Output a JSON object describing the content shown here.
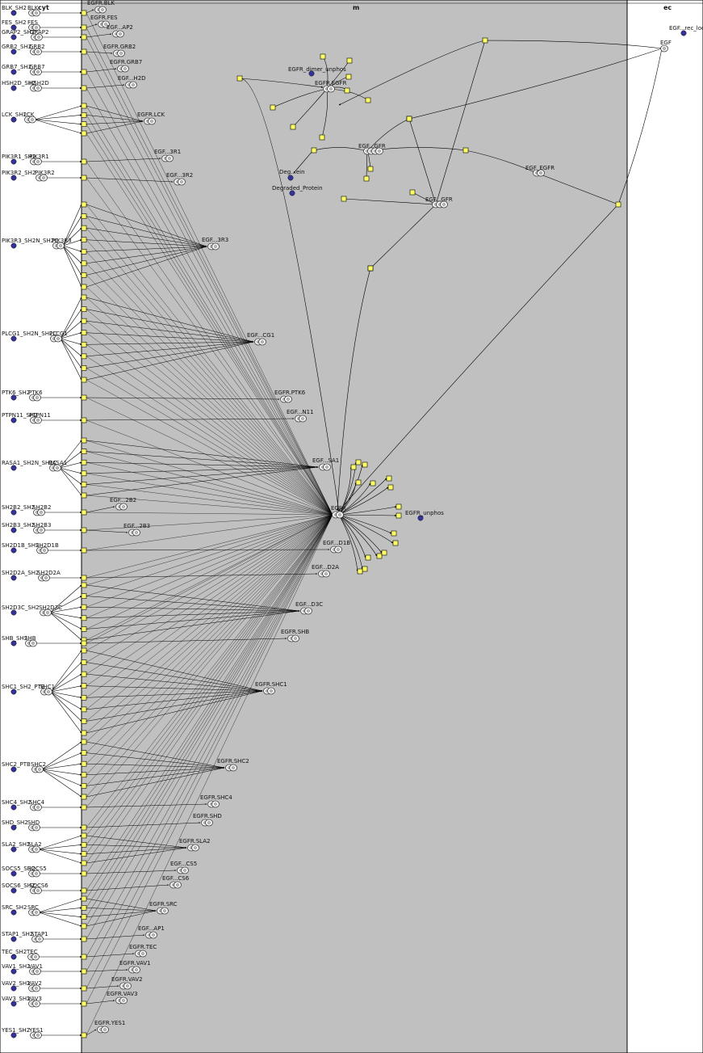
{
  "compartments": [
    {
      "name": "cyt"
    },
    {
      "name": "m"
    },
    {
      "name": "ec"
    }
  ],
  "colors": {
    "cyt_bg": "#ffffff",
    "m_bg": "#c0c0c0",
    "ec_bg": "#ffffff",
    "node": "#ffff66",
    "species_dot": "#333399",
    "complex_outline": "#444444",
    "edge": "#000000"
  },
  "domains": [
    {
      "label": "BLK_SH2",
      "complex": "BLK"
    },
    {
      "label": "FES_SH2",
      "complex": "FES"
    },
    {
      "label": "GRAP2_SH2",
      "complex": "GRAP2"
    },
    {
      "label": "GRB2_SH2",
      "complex": "GRB2"
    },
    {
      "label": "GRB7_SH2",
      "complex": "GRB7"
    },
    {
      "label": "HSH2D_SH2",
      "complex": "HSH2D"
    },
    {
      "label": "LCK_SH2",
      "complex": "LCK"
    },
    {
      "label": "PIK3R1_SH2",
      "complex": "PIK3R1"
    },
    {
      "label": "PIK3R2_SH2",
      "complex": "PIK3R2"
    },
    {
      "label": "PIK3R3_SH2N_SH2C",
      "complex": "PIK3R3"
    },
    {
      "label": "PLCG1_SH2N_SH2C",
      "complex": "PLCG1"
    },
    {
      "label": "PTK6_SH2",
      "complex": "PTK6"
    },
    {
      "label": "PTPN11_SH2",
      "complex": "PTPN11"
    },
    {
      "label": "RASA1_SH2N_SH2C",
      "complex": "RASA1"
    },
    {
      "label": "SH2B2_SH2",
      "complex": "SH2B2"
    },
    {
      "label": "SH2B3_SH2",
      "complex": "SH2B3"
    },
    {
      "label": "SH2D1B_SH2",
      "complex": "SH2D1B"
    },
    {
      "label": "SH2D2A_SH2",
      "complex": "SH2D2A"
    },
    {
      "label": "SH2D3C_SH2",
      "complex": "SH2D3C"
    },
    {
      "label": "SHB_SH2",
      "complex": "SHB"
    },
    {
      "label": "SHC1_SH2_PTB",
      "complex": "SHC1"
    },
    {
      "label": "SHC2_PTB",
      "complex": "SHC2"
    },
    {
      "label": "SHC4_SH2",
      "complex": "SHC4"
    },
    {
      "label": "SHD_SH2",
      "complex": "SHD"
    },
    {
      "label": "SLA2_SH2",
      "complex": "SLA2"
    },
    {
      "label": "SOCS5_SH2",
      "complex": "SOCS5"
    },
    {
      "label": "SOCS6_SH2",
      "complex": "SOCS6"
    },
    {
      "label": "SRC_SH2",
      "complex": "SRC"
    },
    {
      "label": "STAP1_SH2",
      "complex": "STAP1"
    },
    {
      "label": "TEC_SH2",
      "complex": "TEC"
    },
    {
      "label": "VAV1_SH2",
      "complex": "VAV1"
    },
    {
      "label": "VAV2_SH2",
      "complex": "VAV2"
    },
    {
      "label": "VAV3_SH2",
      "complex": "VAV3"
    },
    {
      "label": "YES1_SH2",
      "complex": "YES1"
    }
  ],
  "egfr_complexes": [
    "EGFR.BLK",
    "EGFR.FES",
    "EGF...AP2",
    "EGFR.GRB2",
    "EGFR.GRB7",
    "EGF...H2D",
    "EGFR.LCK",
    "EGF...3R1",
    "EGF...3R2",
    "EGF...3R3",
    "EGF...CG1",
    "EGFR.PTK6",
    "EGF...N11",
    "EGF...SA1",
    "EGF...2B2",
    "EGF...2B3",
    "EGF...D1B",
    "EGF...D2A",
    "EGF...D3C",
    "EGFR.SHB",
    "EGFR.SHC1",
    "EGFR.SHC2",
    "EGFR.SHC4",
    "EGFR.SHD",
    "EGFR.SLA2",
    "EGF...CS5",
    "EGF...CS6",
    "EGFR.SRC",
    "EGF...AP1",
    "EGFR.TEC",
    "EGFR.VAV1",
    "EGFR.VAV2",
    "EGFR.VAV3",
    "EGFR.YES1"
  ],
  "membrane_species": {
    "hub": "EGFR",
    "unphos": "EGFR_unphos",
    "dimer_unphos": "EGFR_dimer_unphos",
    "dimer": "EGFR.EGFR",
    "complex1": "EGF...GFR",
    "complex2": "EGF...GFR",
    "egf_egfr": "EGF_EGFR",
    "deg_short": "Deg...ein",
    "degraded": "Degraded_Protein"
  },
  "ec_species": {
    "egf": "EGF",
    "egf_rec": "EGF...rec_loc"
  }
}
